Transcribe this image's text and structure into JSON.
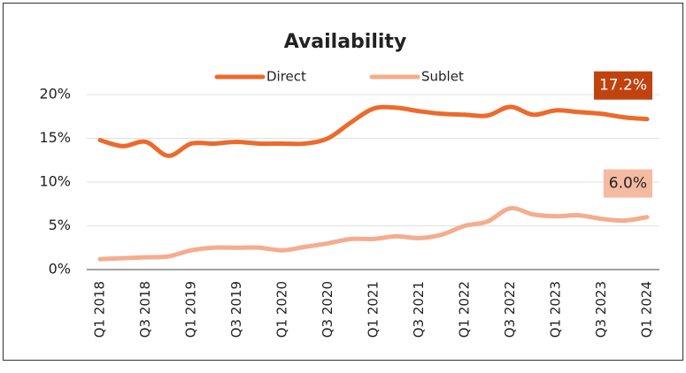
{
  "chart_data": {
    "type": "line",
    "title": "Availability",
    "categories": [
      "Q1 2018",
      null,
      "Q3 2018",
      null,
      "Q1 2019",
      null,
      "Q3 2019",
      null,
      "Q1 2020",
      null,
      "Q3 2020",
      null,
      "Q1 2021",
      null,
      "Q3 2021",
      null,
      "Q1 2022",
      null,
      "Q3 2022",
      null,
      "Q1 2023",
      null,
      "Q3 2023",
      null,
      "Q1 2024"
    ],
    "series": [
      {
        "name": "Direct",
        "color": "#ec6a2c",
        "values": [
          14.8,
          14.1,
          14.6,
          13.0,
          14.4,
          14.4,
          14.6,
          14.4,
          14.4,
          14.4,
          15.0,
          16.8,
          18.4,
          18.5,
          18.1,
          17.8,
          17.7,
          17.6,
          18.6,
          17.7,
          18.2,
          18.0,
          17.8,
          17.4,
          17.2
        ],
        "value_labels": [
          null,
          null,
          null,
          null,
          null,
          null,
          null,
          null,
          null,
          null,
          null,
          null,
          null,
          null,
          null,
          null,
          null,
          null,
          null,
          null,
          null,
          null,
          null,
          null,
          "17.2%"
        ],
        "label_color": "#c0430f",
        "label_text_color": "#ffffff"
      },
      {
        "name": "Sublet",
        "color": "#f4ad8e",
        "values": [
          1.2,
          1.3,
          1.4,
          1.5,
          2.2,
          2.5,
          2.5,
          2.5,
          2.2,
          2.6,
          3.0,
          3.5,
          3.5,
          3.8,
          3.6,
          4.0,
          5.0,
          5.5,
          7.0,
          6.3,
          6.1,
          6.2,
          5.8,
          5.6,
          6.0
        ],
        "value_labels": [
          null,
          null,
          null,
          null,
          null,
          null,
          null,
          null,
          null,
          null,
          null,
          null,
          null,
          null,
          null,
          null,
          null,
          null,
          null,
          null,
          null,
          null,
          null,
          null,
          "6.0%"
        ],
        "label_color": "#f5bba2",
        "label_text_color": "#222222"
      }
    ],
    "ylim": [
      0,
      20
    ],
    "yticks": [
      {
        "value": 0,
        "label": "0%"
      },
      {
        "value": 5,
        "label": "5%"
      },
      {
        "value": 10,
        "label": "10%"
      },
      {
        "value": 15,
        "label": "15%"
      },
      {
        "value": 20,
        "label": "20%"
      }
    ],
    "grid": true
  }
}
